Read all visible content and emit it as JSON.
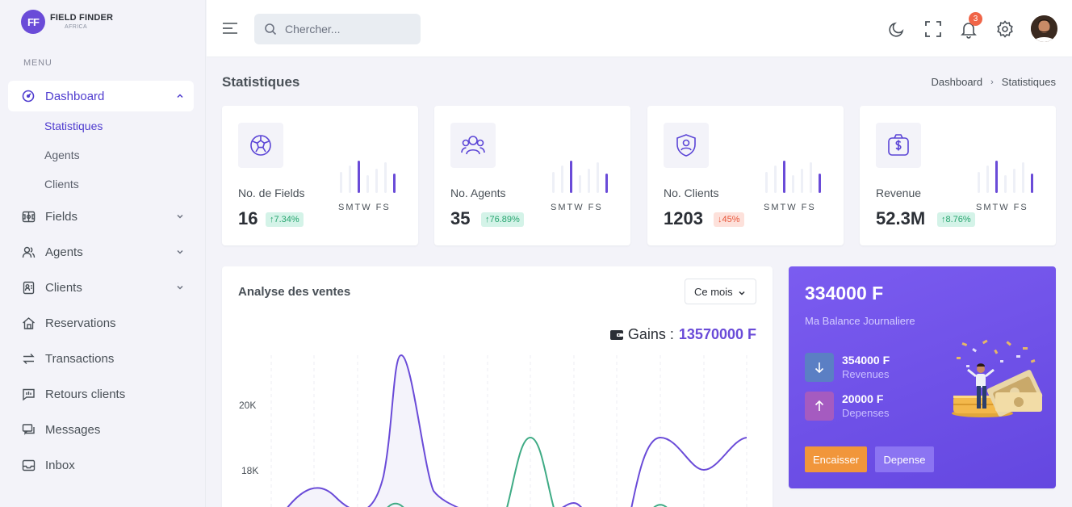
{
  "brand": {
    "logo": "FF",
    "name": "FIELD FINDER",
    "sub": "AFRICA"
  },
  "sidebar": {
    "menu_title": "MENU",
    "items": [
      {
        "label": "Dashboard",
        "icon": "dashboard-icon"
      },
      {
        "label": "Fields",
        "icon": "fields-icon"
      },
      {
        "label": "Agents",
        "icon": "agents-icon"
      },
      {
        "label": "Clients",
        "icon": "clients-icon"
      },
      {
        "label": "Reservations",
        "icon": "reservations-icon"
      },
      {
        "label": "Transactions",
        "icon": "transactions-icon"
      },
      {
        "label": "Retours clients",
        "icon": "feedback-icon"
      },
      {
        "label": "Messages",
        "icon": "messages-icon"
      },
      {
        "label": "Inbox",
        "icon": "inbox-icon"
      }
    ],
    "dashboard_sub": [
      "Statistiques",
      "Agents",
      "Clients"
    ]
  },
  "topbar": {
    "search_placeholder": "Chercher...",
    "notification_count": "3"
  },
  "page": {
    "title": "Statistiques",
    "breadcrumb": [
      "Dashboard",
      "Statistiques"
    ]
  },
  "stats": [
    {
      "label": "No. de Fields",
      "value": "16",
      "change": "7.34%",
      "trend": "up",
      "days": "SMTW FS"
    },
    {
      "label": "No. Agents",
      "value": "35",
      "change": "76.89%",
      "trend": "up",
      "days": "SMTW FS"
    },
    {
      "label": "No. Clients",
      "value": "1203",
      "change": "45%",
      "trend": "down",
      "days": "SMTW FS"
    },
    {
      "label": "Revenue",
      "value": "52.3M",
      "change": "8.76%",
      "trend": "up",
      "days": "SMTW FS"
    }
  ],
  "sales": {
    "title": "Analyse des ventes",
    "period": "Ce mois",
    "gains_label": "Gains :",
    "gains_value": "13570000 F"
  },
  "chart_data": {
    "type": "line",
    "y_ticks": [
      "20K",
      "18K"
    ],
    "colors": {
      "series_1": "#6a4bd8",
      "series_2": "#3fab85"
    }
  },
  "balance": {
    "amount": "334000 F",
    "subtitle": "Ma Balance Journaliere",
    "revenue_value": "354000 F",
    "revenue_label": "Revenues",
    "expense_value": "20000 F",
    "expense_label": "Depenses",
    "cash_button": "Encaisser",
    "expense_button": "Depense"
  },
  "colors": {
    "accent": "#6a4bd8",
    "up": "#27a56f",
    "down": "#e8563a",
    "orange": "#f1963b"
  }
}
